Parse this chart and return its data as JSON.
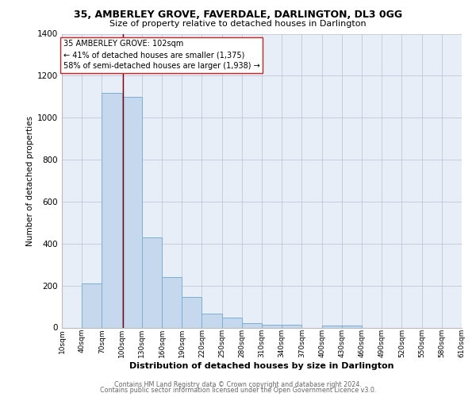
{
  "title1": "35, AMBERLEY GROVE, FAVERDALE, DARLINGTON, DL3 0GG",
  "title2": "Size of property relative to detached houses in Darlington",
  "xlabel": "Distribution of detached houses by size in Darlington",
  "ylabel": "Number of detached properties",
  "footnote1": "Contains HM Land Registry data © Crown copyright and database right 2024.",
  "footnote2": "Contains public sector information licensed under the Open Government Licence v3.0.",
  "annotation_line1": "35 AMBERLEY GROVE: 102sqm",
  "annotation_line2": "← 41% of detached houses are smaller (1,375)",
  "annotation_line3": "58% of semi-detached houses are larger (1,938) →",
  "property_size": 102,
  "bin_edges": [
    10,
    40,
    70,
    100,
    130,
    160,
    190,
    220,
    250,
    280,
    310,
    340,
    370,
    400,
    430,
    460,
    490,
    520,
    550,
    580,
    610
  ],
  "bar_heights": [
    0,
    210,
    1120,
    1100,
    430,
    240,
    145,
    65,
    48,
    22,
    15,
    12,
    0,
    10,
    10,
    0,
    0,
    0,
    0,
    0
  ],
  "bar_color": "#c5d8ed",
  "bar_edge_color": "#7bafd4",
  "vline_color": "#8b0000",
  "vline_x": 102,
  "ylim": [
    0,
    1400
  ],
  "yticks": [
    0,
    200,
    400,
    600,
    800,
    1000,
    1200,
    1400
  ],
  "grid_color": "#c0c8d8",
  "background_color": "#e8eef8"
}
